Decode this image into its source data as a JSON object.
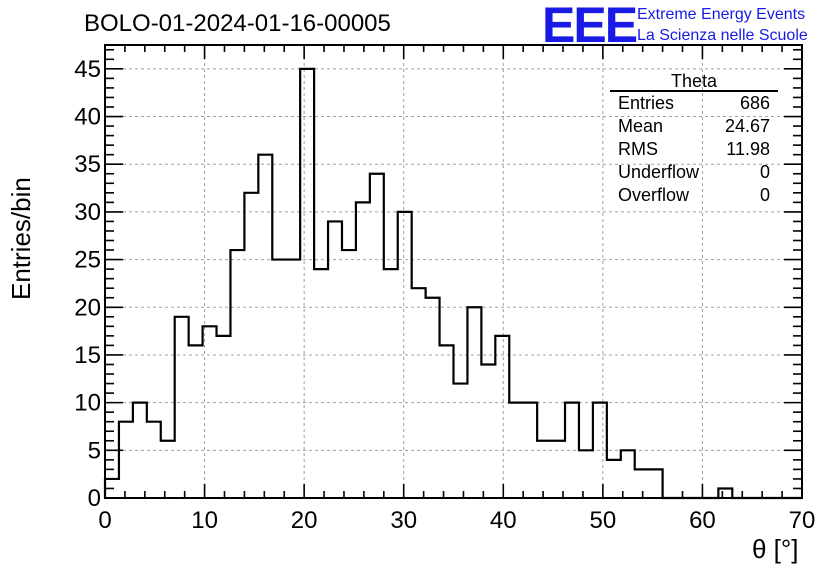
{
  "header": {
    "title": "BOLO-01-2024-01-16-00005",
    "logo_mark": "EEE",
    "logo_line1": "Extreme Energy Events",
    "logo_line2": "La Scienza nelle Scuole"
  },
  "stats": {
    "title": "Theta",
    "rows": [
      {
        "label": "Entries",
        "value": "686"
      },
      {
        "label": "Mean",
        "value": "24.67"
      },
      {
        "label": "RMS",
        "value": "11.98"
      },
      {
        "label": "Underflow",
        "value": "0"
      },
      {
        "label": "Overflow",
        "value": "0"
      }
    ]
  },
  "colors": {
    "line": "#000000",
    "grid": "#a0a0a0",
    "logo": "#1a1ae6"
  },
  "chart_data": {
    "type": "bar",
    "histogram": true,
    "xlabel": "θ [°]",
    "ylabel": "Entries/bin",
    "xlim": [
      0,
      70
    ],
    "ylim": [
      0,
      47.5
    ],
    "grid": true,
    "xticks": [
      0,
      10,
      20,
      30,
      40,
      50,
      60,
      70
    ],
    "yticks": [
      0,
      5,
      10,
      15,
      20,
      25,
      30,
      35,
      40,
      45
    ],
    "bin_edges": [
      0,
      1.4,
      2.8,
      4.2,
      5.6,
      7,
      8.4,
      9.8,
      11.2,
      12.6,
      14,
      15.4,
      16.8,
      18.2,
      19.6,
      21,
      22.4,
      23.8,
      25.2,
      26.6,
      28,
      29.4,
      30.8,
      32.2,
      33.6,
      35,
      36.4,
      37.8,
      39.2,
      40.6,
      42,
      43.4,
      44.8,
      46.2,
      47.6,
      49,
      50.4,
      51.8,
      53.2,
      54.6,
      56,
      57.4,
      58.8,
      60.2,
      61.6,
      63,
      64.4,
      65.8,
      67.2,
      68.6,
      70
    ],
    "values": [
      2,
      8,
      10,
      8,
      6,
      19,
      16,
      18,
      17,
      26,
      32,
      36,
      25,
      25,
      45,
      24,
      29,
      26,
      31,
      34,
      24,
      30,
      22,
      21,
      16,
      12,
      20,
      14,
      17,
      10,
      10,
      6,
      6,
      10,
      5,
      10,
      4,
      5,
      3,
      3,
      0,
      0,
      0,
      0,
      1,
      0,
      0,
      0,
      0,
      0
    ]
  }
}
